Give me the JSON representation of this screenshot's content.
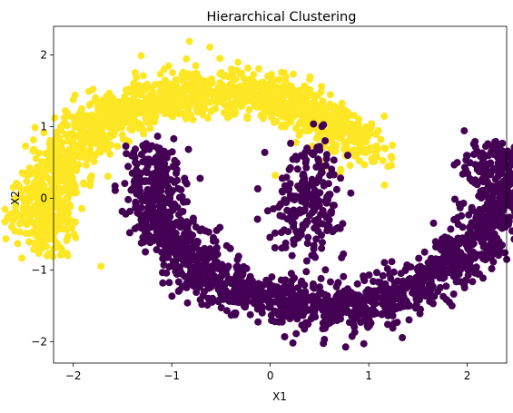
{
  "chart_data": {
    "type": "scatter",
    "title": "Hierarchical Clustering",
    "xlabel": "X1",
    "ylabel": "X2",
    "xlim": [
      -2.2,
      2.4
    ],
    "ylim": [
      -2.3,
      2.4
    ],
    "xticks": [
      -2,
      -1,
      0,
      1,
      2
    ],
    "yticks": [
      -2,
      -1,
      0,
      1,
      2
    ],
    "xtick_labels": [
      "−2",
      "−1",
      "0",
      "1",
      "2"
    ],
    "ytick_labels": [
      "−2",
      "−1",
      "0",
      "1",
      "2"
    ],
    "grid": false,
    "legend": "none",
    "colormap": "viridis",
    "series": [
      {
        "color": "#fde725",
        "shape": "upper arc (inverted half-moon)",
        "center": [
          -0.55,
          -0.25
        ],
        "radius": 1.75,
        "angle_range_deg": [
          30,
          192
        ],
        "noise": 0.16,
        "n_points": 1600,
        "extra_points": [
          [
            -0.82,
            2.19
          ],
          [
            -1.31,
            1.99
          ],
          [
            -1.97,
            0.08
          ],
          [
            -1.72,
            -0.95
          ],
          [
            0.05,
            0.32
          ]
        ]
      },
      {
        "color": "#440154",
        "shape": "lower arc (half-moon) with inner lobe",
        "center": [
          0.55,
          0.25
        ],
        "radius": 1.75,
        "angle_range_deg": [
          -192,
          14
        ],
        "noise": 0.16,
        "n_points": 1800,
        "lobe": {
          "center": [
            0.4,
            0.0
          ],
          "spread": [
            0.18,
            0.4
          ],
          "n_points": 220
        },
        "extra_points": [
          [
            2.18,
            0.11
          ],
          [
            0.95,
            -2.03
          ],
          [
            0.23,
            -2.02
          ],
          [
            0.55,
            -1.97
          ]
        ]
      }
    ]
  }
}
